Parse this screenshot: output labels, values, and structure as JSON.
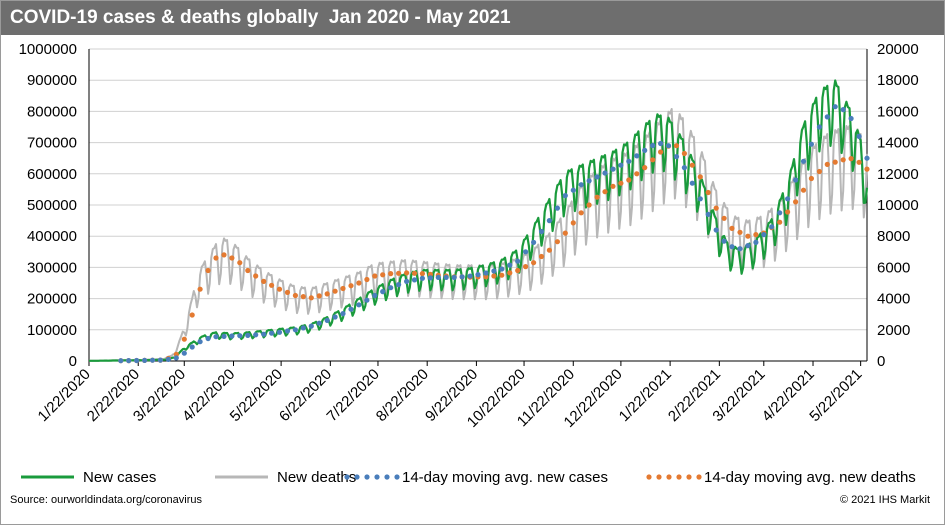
{
  "chart_data": {
    "type": "line",
    "title": "COVID-19 cases & deaths globally  Jan 2020 - May 2021",
    "x_tick_labels": [
      "1/22/2020",
      "2/22/2020",
      "3/22/2020",
      "4/22/2020",
      "5/22/2020",
      "6/22/2020",
      "7/22/2020",
      "8/22/2020",
      "9/22/2020",
      "10/22/2020",
      "11/22/2020",
      "12/22/2020",
      "1/22/2021",
      "2/22/2021",
      "3/22/2021",
      "4/22/2021",
      "5/22/2021"
    ],
    "x_tick_days": [
      0,
      31,
      60,
      91,
      121,
      152,
      182,
      213,
      244,
      274,
      305,
      335,
      366,
      397,
      425,
      456,
      486
    ],
    "x_range_days": [
      0,
      490
    ],
    "y_left": {
      "range": [
        0,
        1000000
      ],
      "ticks": [
        "0",
        "100000",
        "200000",
        "300000",
        "400000",
        "500000",
        "600000",
        "700000",
        "800000",
        "900000",
        "1000000"
      ]
    },
    "y_right": {
      "range": [
        0,
        20000
      ],
      "ticks": [
        "0",
        "2000",
        "4000",
        "6000",
        "8000",
        "10000",
        "12000",
        "14000",
        "16000",
        "18000",
        "20000"
      ]
    },
    "grid": true,
    "legend_position": "bottom",
    "series": [
      {
        "name": "New cases",
        "axis": "left",
        "style": "solid",
        "color": "#1a9b3c",
        "smooth_points": [
          [
            0,
            500
          ],
          [
            25,
            2000
          ],
          [
            40,
            3000
          ],
          [
            50,
            5000
          ],
          [
            55,
            15000
          ],
          [
            60,
            40000
          ],
          [
            65,
            55000
          ],
          [
            70,
            70000
          ],
          [
            75,
            80000
          ],
          [
            80,
            85000
          ],
          [
            90,
            82000
          ],
          [
            100,
            85000
          ],
          [
            110,
            90000
          ],
          [
            120,
            95000
          ],
          [
            130,
            100000
          ],
          [
            140,
            110000
          ],
          [
            150,
            130000
          ],
          [
            160,
            155000
          ],
          [
            170,
            185000
          ],
          [
            180,
            215000
          ],
          [
            190,
            240000
          ],
          [
            200,
            260000
          ],
          [
            210,
            270000
          ],
          [
            220,
            270000
          ],
          [
            230,
            270000
          ],
          [
            240,
            275000
          ],
          [
            250,
            285000
          ],
          [
            260,
            300000
          ],
          [
            270,
            330000
          ],
          [
            280,
            400000
          ],
          [
            290,
            480000
          ],
          [
            300,
            560000
          ],
          [
            310,
            580000
          ],
          [
            320,
            600000
          ],
          [
            330,
            620000
          ],
          [
            340,
            650000
          ],
          [
            350,
            700000
          ],
          [
            358,
            730000
          ],
          [
            365,
            720000
          ],
          [
            375,
            650000
          ],
          [
            385,
            550000
          ],
          [
            395,
            420000
          ],
          [
            402,
            350000
          ],
          [
            410,
            330000
          ],
          [
            420,
            360000
          ],
          [
            430,
            420000
          ],
          [
            440,
            530000
          ],
          [
            450,
            700000
          ],
          [
            460,
            800000
          ],
          [
            470,
            830000
          ],
          [
            480,
            740000
          ],
          [
            487,
            640000
          ],
          [
            490,
            530000
          ]
        ],
        "weekly_swing": 0.12
      },
      {
        "name": "New deaths",
        "axis": "right",
        "style": "solid",
        "color": "#b7b7b7",
        "smooth_points": [
          [
            0,
            10
          ],
          [
            30,
            60
          ],
          [
            45,
            100
          ],
          [
            52,
            300
          ],
          [
            56,
            900
          ],
          [
            60,
            1900
          ],
          [
            64,
            3200
          ],
          [
            68,
            4700
          ],
          [
            72,
            5500
          ],
          [
            76,
            6000
          ],
          [
            80,
            6600
          ],
          [
            85,
            6900
          ],
          [
            90,
            6700
          ],
          [
            95,
            6300
          ],
          [
            100,
            5800
          ],
          [
            110,
            5100
          ],
          [
            120,
            4600
          ],
          [
            130,
            4200
          ],
          [
            140,
            4100
          ],
          [
            150,
            4400
          ],
          [
            160,
            4700
          ],
          [
            170,
            5000
          ],
          [
            180,
            5500
          ],
          [
            190,
            5600
          ],
          [
            200,
            5700
          ],
          [
            210,
            5600
          ],
          [
            220,
            5500
          ],
          [
            230,
            5400
          ],
          [
            240,
            5400
          ],
          [
            250,
            5400
          ],
          [
            260,
            5500
          ],
          [
            270,
            5800
          ],
          [
            280,
            6300
          ],
          [
            290,
            7200
          ],
          [
            300,
            8400
          ],
          [
            310,
            9900
          ],
          [
            320,
            10800
          ],
          [
            330,
            11400
          ],
          [
            340,
            11800
          ],
          [
            350,
            12600
          ],
          [
            360,
            13600
          ],
          [
            368,
            14300
          ],
          [
            375,
            13600
          ],
          [
            385,
            12000
          ],
          [
            395,
            9600
          ],
          [
            405,
            8200
          ],
          [
            415,
            7900
          ],
          [
            425,
            8200
          ],
          [
            435,
            9000
          ],
          [
            445,
            10500
          ],
          [
            455,
            12000
          ],
          [
            465,
            12800
          ],
          [
            475,
            13200
          ],
          [
            482,
            13300
          ],
          [
            490,
            12300
          ]
        ],
        "weekly_swing": 0.2
      },
      {
        "name": "14-day moving avg. new cases",
        "axis": "left",
        "style": "dotted",
        "color": "#4a7ebb",
        "smooth_points": [
          [
            0,
            300
          ],
          [
            30,
            1500
          ],
          [
            45,
            3000
          ],
          [
            50,
            5000
          ],
          [
            55,
            10000
          ],
          [
            60,
            25000
          ],
          [
            65,
            45000
          ],
          [
            70,
            62000
          ],
          [
            75,
            72000
          ],
          [
            80,
            78000
          ],
          [
            90,
            80000
          ],
          [
            100,
            82000
          ],
          [
            110,
            86000
          ],
          [
            120,
            92000
          ],
          [
            130,
            100000
          ],
          [
            140,
            112000
          ],
          [
            150,
            130000
          ],
          [
            160,
            152000
          ],
          [
            170,
            180000
          ],
          [
            180,
            210000
          ],
          [
            190,
            235000
          ],
          [
            200,
            255000
          ],
          [
            210,
            265000
          ],
          [
            220,
            268000
          ],
          [
            230,
            268000
          ],
          [
            240,
            272000
          ],
          [
            250,
            282000
          ],
          [
            260,
            295000
          ],
          [
            270,
            320000
          ],
          [
            280,
            380000
          ],
          [
            290,
            450000
          ],
          [
            300,
            530000
          ],
          [
            310,
            565000
          ],
          [
            320,
            590000
          ],
          [
            330,
            615000
          ],
          [
            340,
            640000
          ],
          [
            350,
            675000
          ],
          [
            358,
            700000
          ],
          [
            365,
            690000
          ],
          [
            375,
            620000
          ],
          [
            385,
            520000
          ],
          [
            395,
            420000
          ],
          [
            402,
            370000
          ],
          [
            410,
            360000
          ],
          [
            420,
            380000
          ],
          [
            430,
            430000
          ],
          [
            440,
            520000
          ],
          [
            450,
            640000
          ],
          [
            460,
            750000
          ],
          [
            470,
            815000
          ],
          [
            478,
            800000
          ],
          [
            485,
            720000
          ],
          [
            490,
            650000
          ]
        ]
      },
      {
        "name": "14-day moving avg. new deaths",
        "axis": "right",
        "style": "dotted",
        "color": "#e47a31",
        "smooth_points": [
          [
            0,
            5
          ],
          [
            30,
            30
          ],
          [
            45,
            60
          ],
          [
            52,
            200
          ],
          [
            56,
            500
          ],
          [
            60,
            1400
          ],
          [
            64,
            2600
          ],
          [
            68,
            4000
          ],
          [
            72,
            5200
          ],
          [
            76,
            6000
          ],
          [
            80,
            6600
          ],
          [
            85,
            6800
          ],
          [
            90,
            6600
          ],
          [
            95,
            6300
          ],
          [
            100,
            5800
          ],
          [
            110,
            5100
          ],
          [
            120,
            4600
          ],
          [
            130,
            4200
          ],
          [
            140,
            4050
          ],
          [
            150,
            4300
          ],
          [
            160,
            4650
          ],
          [
            170,
            5000
          ],
          [
            180,
            5450
          ],
          [
            190,
            5600
          ],
          [
            200,
            5650
          ],
          [
            210,
            5600
          ],
          [
            220,
            5500
          ],
          [
            230,
            5400
          ],
          [
            240,
            5380
          ],
          [
            250,
            5400
          ],
          [
            260,
            5500
          ],
          [
            270,
            5800
          ],
          [
            280,
            6300
          ],
          [
            290,
            7100
          ],
          [
            300,
            8200
          ],
          [
            310,
            9500
          ],
          [
            320,
            10500
          ],
          [
            330,
            11200
          ],
          [
            340,
            11600
          ],
          [
            350,
            12400
          ],
          [
            360,
            13400
          ],
          [
            368,
            14000
          ],
          [
            375,
            13300
          ],
          [
            385,
            11800
          ],
          [
            395,
            9800
          ],
          [
            405,
            8500
          ],
          [
            415,
            8000
          ],
          [
            425,
            8200
          ],
          [
            435,
            8900
          ],
          [
            445,
            10200
          ],
          [
            455,
            11700
          ],
          [
            465,
            12600
          ],
          [
            475,
            12900
          ],
          [
            482,
            13000
          ],
          [
            490,
            12300
          ]
        ]
      }
    ]
  },
  "footer": {
    "source": "Source:  ourworldindata.org/coronavirus",
    "copyright": "© 2021 IHS Markit"
  }
}
